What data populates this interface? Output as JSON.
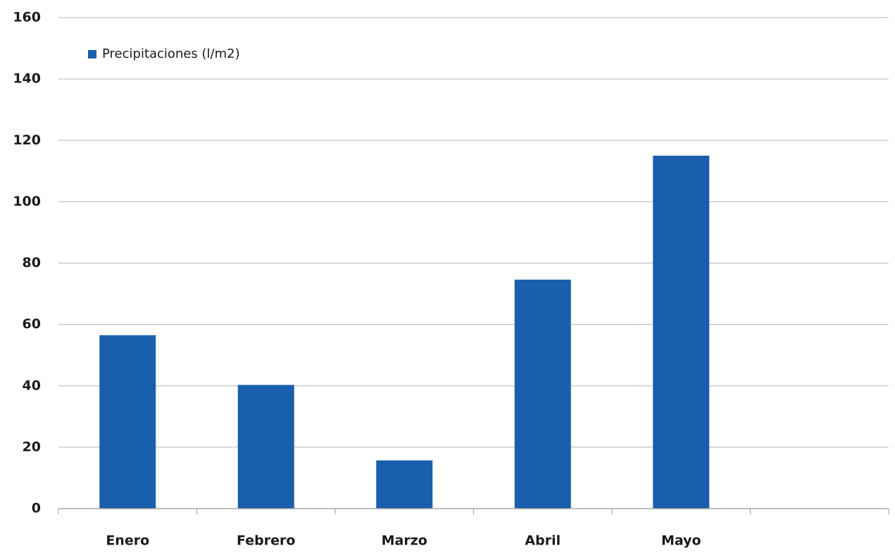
{
  "chart_data": {
    "type": "bar",
    "categories": [
      "Enero",
      "Febrero",
      "Marzo",
      "Abril",
      "Mayo",
      null
    ],
    "series": [
      {
        "name": "Precipitaciones (l/m2)",
        "color": "#1a5fad",
        "values": [
          56.5,
          40.3,
          15.7,
          74.6,
          115,
          null
        ]
      }
    ],
    "ylim": [
      0,
      160
    ],
    "yticks": [
      0,
      20,
      40,
      60,
      80,
      100,
      120,
      140,
      160
    ],
    "grid": true,
    "legend": "upper left"
  }
}
